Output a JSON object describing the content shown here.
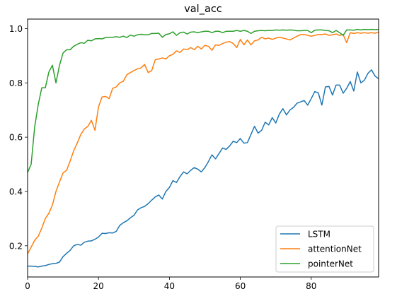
{
  "chart_data": {
    "type": "line",
    "title": "val_acc",
    "xlabel": "",
    "ylabel": "",
    "xlim": [
      0,
      99
    ],
    "ylim": [
      0.085,
      1.035
    ],
    "xticks": [
      0,
      20,
      40,
      60,
      80
    ],
    "yticks": [
      0.2,
      0.4,
      0.6,
      0.8,
      1.0
    ],
    "xtick_labels": [
      "0",
      "20",
      "40",
      "60",
      "80"
    ],
    "ytick_labels": [
      "0.2",
      "0.4",
      "0.6",
      "0.8",
      "1.0"
    ],
    "grid": false,
    "legend_position": "lower-right",
    "x": [
      0,
      1,
      2,
      3,
      4,
      5,
      6,
      7,
      8,
      9,
      10,
      11,
      12,
      13,
      14,
      15,
      16,
      17,
      18,
      19,
      20,
      21,
      22,
      23,
      24,
      25,
      26,
      27,
      28,
      29,
      30,
      31,
      32,
      33,
      34,
      35,
      36,
      37,
      38,
      39,
      40,
      41,
      42,
      43,
      44,
      45,
      46,
      47,
      48,
      49,
      50,
      51,
      52,
      53,
      54,
      55,
      56,
      57,
      58,
      59,
      60,
      61,
      62,
      63,
      64,
      65,
      66,
      67,
      68,
      69,
      70,
      71,
      72,
      73,
      74,
      75,
      76,
      77,
      78,
      79,
      80,
      81,
      82,
      83,
      84,
      85,
      86,
      87,
      88,
      89,
      90,
      91,
      92,
      93,
      94,
      95,
      96,
      97,
      98,
      99
    ],
    "series": [
      {
        "name": "LSTM",
        "color": "#1f77b4",
        "values": [
          0.125,
          0.125,
          0.124,
          0.122,
          0.125,
          0.127,
          0.131,
          0.134,
          0.135,
          0.14,
          0.16,
          0.172,
          0.183,
          0.2,
          0.205,
          0.202,
          0.213,
          0.217,
          0.218,
          0.224,
          0.232,
          0.246,
          0.245,
          0.248,
          0.247,
          0.253,
          0.275,
          0.285,
          0.292,
          0.303,
          0.312,
          0.332,
          0.34,
          0.345,
          0.355,
          0.368,
          0.38,
          0.387,
          0.372,
          0.4,
          0.415,
          0.44,
          0.433,
          0.455,
          0.472,
          0.465,
          0.478,
          0.488,
          0.482,
          0.472,
          0.488,
          0.51,
          0.535,
          0.52,
          0.54,
          0.56,
          0.555,
          0.568,
          0.585,
          0.58,
          0.595,
          0.578,
          0.58,
          0.61,
          0.64,
          0.615,
          0.625,
          0.655,
          0.645,
          0.672,
          0.652,
          0.685,
          0.705,
          0.682,
          0.7,
          0.71,
          0.725,
          0.73,
          0.735,
          0.718,
          0.742,
          0.768,
          0.763,
          0.718,
          0.785,
          0.787,
          0.755,
          0.792,
          0.792,
          0.762,
          0.78,
          0.805,
          0.77,
          0.84,
          0.8,
          0.81,
          0.835,
          0.848,
          0.825,
          0.815
        ]
      },
      {
        "name": "attentionNet",
        "color": "#ff7f0e",
        "values": [
          0.17,
          0.195,
          0.22,
          0.235,
          0.265,
          0.3,
          0.32,
          0.35,
          0.4,
          0.435,
          0.468,
          0.478,
          0.512,
          0.55,
          0.578,
          0.61,
          0.63,
          0.64,
          0.662,
          0.625,
          0.712,
          0.748,
          0.75,
          0.742,
          0.78,
          0.785,
          0.8,
          0.806,
          0.83,
          0.838,
          0.845,
          0.852,
          0.855,
          0.868,
          0.838,
          0.845,
          0.885,
          0.888,
          0.892,
          0.888,
          0.9,
          0.905,
          0.918,
          0.912,
          0.925,
          0.922,
          0.93,
          0.922,
          0.935,
          0.925,
          0.938,
          0.935,
          0.92,
          0.94,
          0.938,
          0.945,
          0.95,
          0.952,
          0.945,
          0.93,
          0.96,
          0.94,
          0.958,
          0.94,
          0.955,
          0.958,
          0.968,
          0.962,
          0.965,
          0.96,
          0.965,
          0.968,
          0.965,
          0.962,
          0.958,
          0.965,
          0.972,
          0.978,
          0.978,
          0.975,
          0.972,
          0.975,
          0.978,
          0.978,
          0.98,
          0.975,
          0.977,
          0.98,
          0.975,
          0.978,
          0.948,
          0.985,
          0.982,
          0.985,
          0.983,
          0.985,
          0.983,
          0.985,
          0.983,
          0.987
        ]
      },
      {
        "name": "pointerNet",
        "color": "#2ca02c",
        "values": [
          0.47,
          0.5,
          0.638,
          0.72,
          0.782,
          0.782,
          0.84,
          0.865,
          0.8,
          0.865,
          0.91,
          0.922,
          0.922,
          0.935,
          0.942,
          0.948,
          0.946,
          0.957,
          0.955,
          0.962,
          0.963,
          0.962,
          0.967,
          0.968,
          0.968,
          0.97,
          0.968,
          0.972,
          0.967,
          0.976,
          0.972,
          0.977,
          0.979,
          0.977,
          0.977,
          0.982,
          0.982,
          0.983,
          0.968,
          0.978,
          0.981,
          0.988,
          0.975,
          0.985,
          0.987,
          0.98,
          0.987,
          0.988,
          0.985,
          0.988,
          0.99,
          0.99,
          0.985,
          0.99,
          0.99,
          0.985,
          0.99,
          0.99,
          0.99,
          0.993,
          0.99,
          0.993,
          0.99,
          0.982,
          0.99,
          0.992,
          0.993,
          0.992,
          0.993,
          0.993,
          0.995,
          0.994,
          0.995,
          0.994,
          0.995,
          0.994,
          0.992,
          0.992,
          0.993,
          0.993,
          0.985,
          0.994,
          0.995,
          0.995,
          0.993,
          0.992,
          0.985,
          0.993,
          0.985,
          0.975,
          0.995,
          0.995,
          0.994,
          0.997,
          0.995,
          0.997,
          0.996,
          0.997,
          0.996,
          0.997
        ]
      }
    ]
  }
}
